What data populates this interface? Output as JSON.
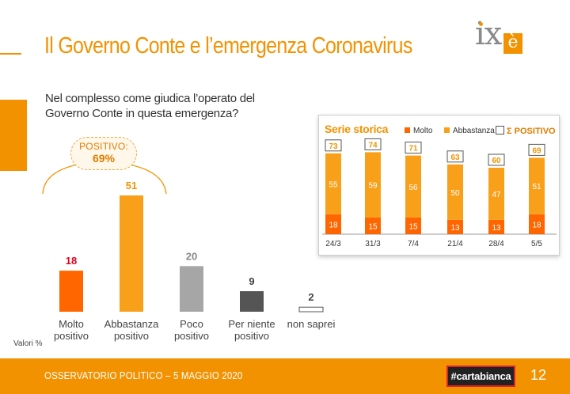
{
  "header": {
    "title": "Il Governo Conte e l’emergenza Coronavirus",
    "logo_text": "ixè"
  },
  "question": "Nel complesso come giudica l’operato del Governo Conte in questa emergenza?",
  "positive_summary": {
    "label": "POSITIVO:",
    "value": "69%"
  },
  "values_note": "Valori %",
  "colors": {
    "accent": "#f39200",
    "molto": "#ff6600",
    "abbastanza": "#f9a01b",
    "poco": "#a6a6a6",
    "per_niente": "#555555",
    "non_saprei": "#ffffff",
    "red_value": "#e3001b"
  },
  "chart_data": [
    {
      "type": "bar",
      "title": "Nel complesso come giudica l’operato del Governo Conte in questa emergenza?",
      "categories": [
        [
          "Molto",
          "positivo"
        ],
        [
          "Abbastanza",
          "positivo"
        ],
        [
          "Poco",
          "positivo"
        ],
        [
          "Per niente",
          "positivo"
        ],
        [
          "non saprei"
        ]
      ],
      "values": [
        18,
        51,
        20,
        9,
        2
      ],
      "ylabel": "Valori %",
      "ylim": [
        0,
        51
      ]
    },
    {
      "type": "bar",
      "stacked": true,
      "title": "Serie storica",
      "categories": [
        "24/3",
        "31/3",
        "7/4",
        "21/4",
        "28/4",
        "5/5"
      ],
      "series": [
        {
          "name": "Molto",
          "values": [
            18,
            15,
            15,
            13,
            13,
            18
          ]
        },
        {
          "name": "Abbastanza",
          "values": [
            55,
            59,
            56,
            50,
            47,
            51
          ]
        }
      ],
      "totals_label": "Σ POSITIVO",
      "totals": [
        73,
        74,
        71,
        63,
        60,
        69
      ]
    }
  ],
  "footer": {
    "text": "OSSERVATORIO POLITICO – 5 MAGGIO 2020",
    "brand": "#cartabianca",
    "page": "12"
  }
}
